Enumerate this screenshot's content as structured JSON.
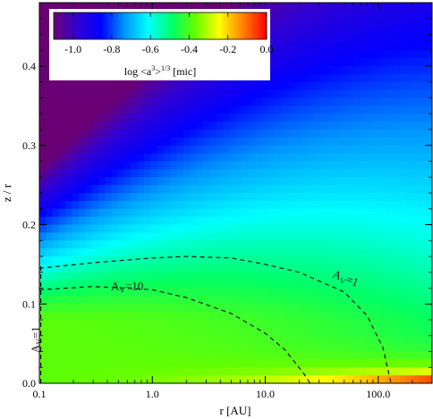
{
  "chart_data": {
    "type": "heatmap",
    "xlabel": "r [AU]",
    "ylabel": "z / r",
    "xscale": "log",
    "xlim": [
      0.1,
      300
    ],
    "ylim": [
      0.0,
      0.48
    ],
    "x_ticks": [
      "0.1",
      "1.0",
      "10.0",
      "100.0"
    ],
    "y_ticks": [
      "0.0",
      "0.1",
      "0.2",
      "0.3",
      "0.4"
    ],
    "colormap": "rainbow",
    "colorbar": {
      "label": "log <a³>^{1/3} [mic]",
      "range": [
        -1.1,
        0.0
      ],
      "ticks": [
        "-1.0",
        "-0.8",
        "-0.6",
        "-0.4",
        "-0.2",
        "0.0"
      ],
      "placement": "top-left"
    },
    "contours": [
      {
        "label": "A_V=1",
        "style": "dashed",
        "points": [
          [
            0.1,
            0.145
          ],
          [
            0.3,
            0.152
          ],
          [
            1.0,
            0.158
          ],
          [
            2.0,
            0.16
          ],
          [
            5.0,
            0.158
          ],
          [
            10.0,
            0.15
          ],
          [
            20.0,
            0.14
          ],
          [
            50.0,
            0.115
          ],
          [
            80.0,
            0.085
          ],
          [
            110.0,
            0.045
          ],
          [
            130.0,
            0.0
          ]
        ]
      },
      {
        "label": "A_V=10",
        "style": "dashed",
        "points": [
          [
            0.1,
            0.118
          ],
          [
            0.3,
            0.122
          ],
          [
            1.0,
            0.118
          ],
          [
            2.0,
            0.108
          ],
          [
            5.0,
            0.088
          ],
          [
            10.0,
            0.063
          ],
          [
            15.0,
            0.042
          ],
          [
            22.0,
            0.012
          ],
          [
            25.0,
            0.0
          ]
        ]
      },
      {
        "label": "A_V=1",
        "style": "dashed",
        "points": [
          [
            0.103,
            0.0
          ],
          [
            0.103,
            0.15
          ]
        ]
      }
    ],
    "annotations": [
      {
        "text": "A",
        "sub": "V",
        "tail": "=1",
        "x": 50.0,
        "y": 0.128,
        "rotate": 22
      },
      {
        "text": "A",
        "sub": "V",
        "tail": "=10",
        "x": 0.6,
        "y": 0.118,
        "rotate": 0
      },
      {
        "text": "A",
        "sub": "V",
        "tail": "=1",
        "x": 0.1,
        "y": 0.055,
        "rotate": -90
      }
    ]
  },
  "colors": {
    "colormap_stops": [
      "#6a0075",
      "#3200d2",
      "#0000ff",
      "#0096ff",
      "#00ffff",
      "#00ff66",
      "#66ff00",
      "#ffff00",
      "#ff8000",
      "#ff0000"
    ]
  }
}
